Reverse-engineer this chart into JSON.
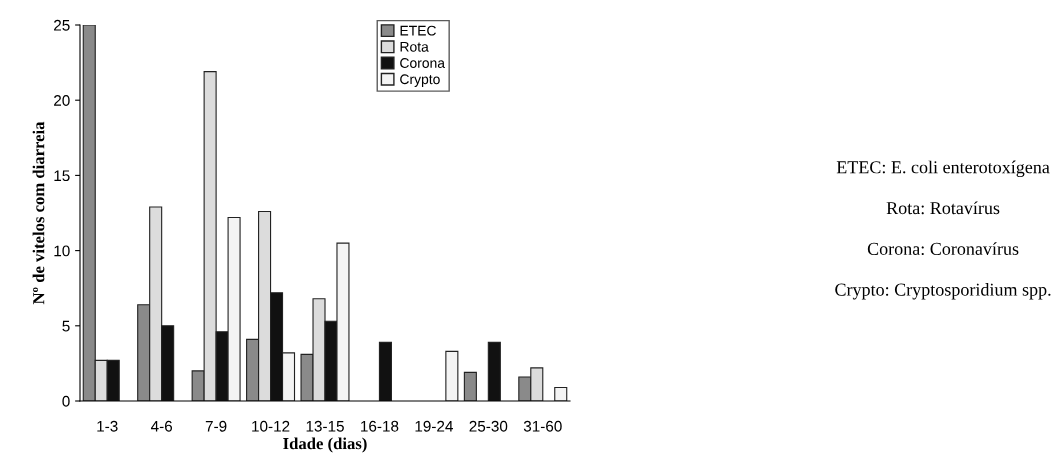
{
  "chart_data": {
    "type": "bar",
    "xlabel": "Idade (dias)",
    "ylabel": "Nº de vitelos com diarreia",
    "categories": [
      "1-3",
      "4-6",
      "7-9",
      "10-12",
      "13-15",
      "16-18",
      "19-24",
      "25-30",
      "31-60"
    ],
    "series": [
      {
        "name": "ETEC",
        "color": "#8a8a8a",
        "values": [
          25,
          6.4,
          2,
          4.1,
          3.1,
          null,
          null,
          1.9,
          1.6
        ]
      },
      {
        "name": "Rota",
        "color": "#dcdcdc",
        "values": [
          2.7,
          12.9,
          21.9,
          12.6,
          6.8,
          null,
          null,
          null,
          2.2
        ]
      },
      {
        "name": "Corona",
        "color": "#111111",
        "values": [
          2.7,
          5,
          4.6,
          7.2,
          5.3,
          3.9,
          null,
          3.9,
          null
        ]
      },
      {
        "name": "Crypto",
        "color": "#f4f4f4",
        "values": [
          null,
          null,
          12.2,
          3.2,
          10.5,
          null,
          3.3,
          null,
          0.9
        ]
      }
    ],
    "ylim": [
      0,
      25
    ],
    "yticks": [
      0,
      5,
      10,
      15,
      20,
      25
    ],
    "grid": false,
    "legend": "top",
    "annotations": [
      "ETEC: E. coli enterotoxígena",
      "Rota: Rotavírus",
      "Corona: Coronavírus",
      "Crypto: Cryptosporidium spp."
    ]
  }
}
